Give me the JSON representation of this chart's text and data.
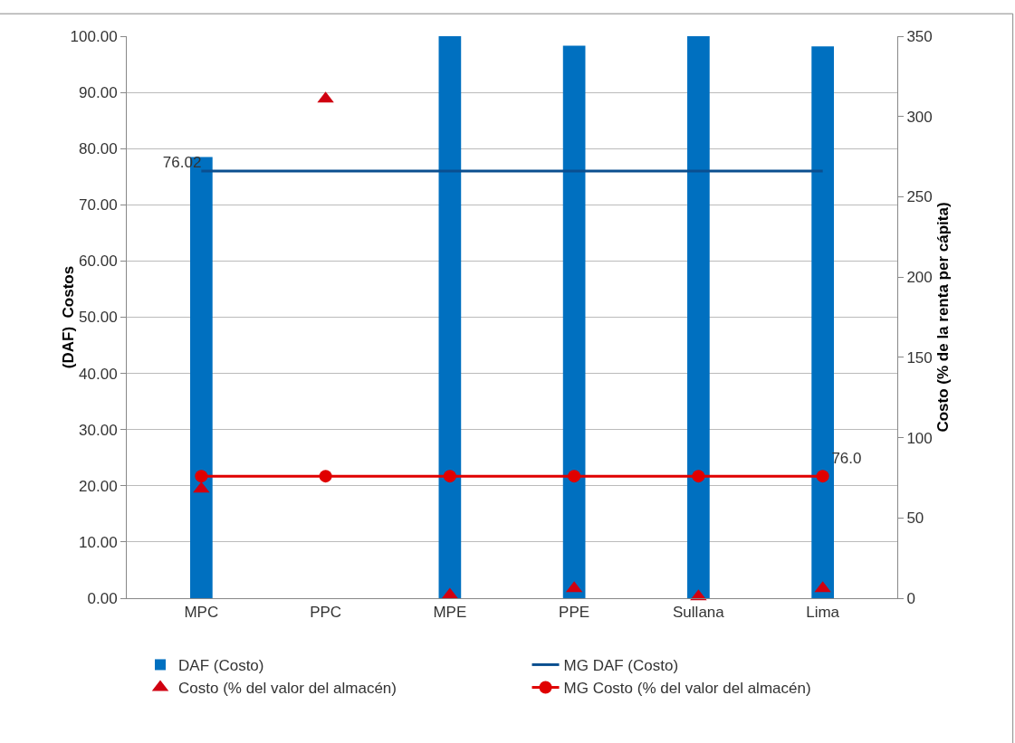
{
  "chart_data": {
    "type": "bar",
    "categories": [
      "MPC",
      "PPC",
      "MPE",
      "PPE",
      "Sullana",
      "Lima"
    ],
    "ylabel": "(DAF)  Costos",
    "y2label": "Costo (% de la renta per cápita)",
    "ylim": [
      0,
      100
    ],
    "yticks": [
      {
        "value": 0,
        "label": "0.00"
      },
      {
        "value": 10,
        "label": "10.00"
      },
      {
        "value": 20,
        "label": "20.00"
      },
      {
        "value": 30,
        "label": "30.00"
      },
      {
        "value": 40,
        "label": "40.00"
      },
      {
        "value": 50,
        "label": "50.00"
      },
      {
        "value": 60,
        "label": "60.00"
      },
      {
        "value": 70,
        "label": "70.00"
      },
      {
        "value": 80,
        "label": "80.00"
      },
      {
        "value": 90,
        "label": "90.00"
      },
      {
        "value": 100,
        "label": "100.00"
      }
    ],
    "y2lim": [
      0,
      350
    ],
    "y2ticks": [
      0,
      50,
      100,
      150,
      200,
      250,
      300,
      350
    ],
    "grid": "y",
    "legend": "bottom",
    "series": [
      {
        "name": "DAF (Costo)",
        "color": "#0070c0",
        "values": [
          78.5,
          null,
          100,
          98.3,
          100,
          98.2
        ]
      },
      {
        "name": "MG DAF (Costo)",
        "type": "line",
        "marker": "none",
        "color": "#0a4f8f",
        "values": [
          76.02,
          76.02,
          76.02,
          76.02,
          76.02,
          76.02
        ],
        "value_labels": [
          "76.02",
          null,
          null,
          null,
          null,
          null
        ]
      },
      {
        "name": "Costo (% del valor del almacén)",
        "type": "scatter",
        "marker": "triangle",
        "axis": "y2",
        "color": "#d00010",
        "values": [
          68,
          311,
          2,
          6,
          1,
          6
        ]
      },
      {
        "name": "MG Costo (% del valor del almacén)",
        "type": "line",
        "marker": "circle",
        "axis": "y2",
        "color": "#e00000",
        "values": [
          76.0,
          76.0,
          76.0,
          76.0,
          76.0,
          76.0
        ],
        "value_labels": [
          null,
          null,
          null,
          null,
          null,
          "76.0"
        ]
      }
    ]
  }
}
